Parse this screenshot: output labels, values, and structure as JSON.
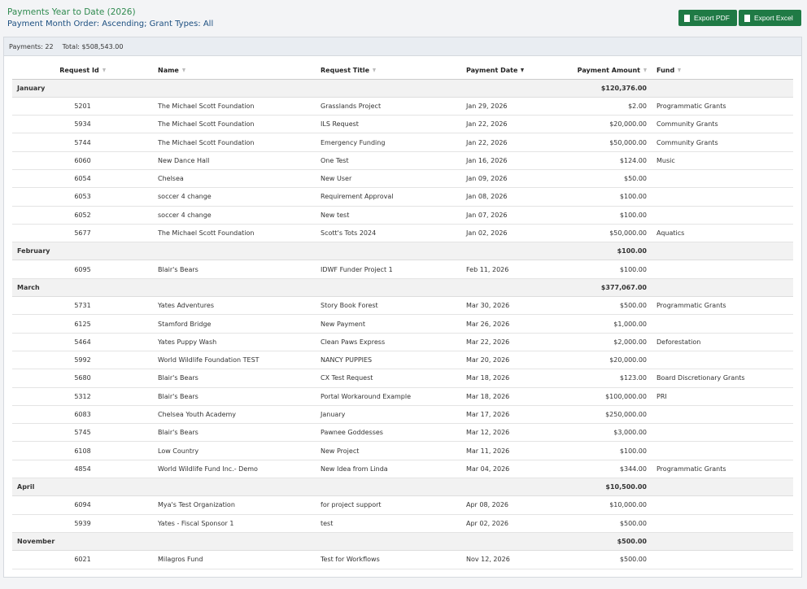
{
  "header": {
    "title": "Payments Year to Date (2026)",
    "subtitle": "Payment Month Order: Ascending; Grant Types: All",
    "buttons": [
      "Export PDF",
      "Export Excel"
    ]
  },
  "summary": {
    "payments": "Payments: 22",
    "total": "Total: $508,543.00"
  },
  "table": {
    "columns": [
      "Request Id",
      "Name",
      "Request Title",
      "Payment Date",
      "Payment Amount",
      "Fund"
    ],
    "groups": [
      {
        "month": "January",
        "total": "$120,376.00",
        "rows": [
          [
            "5201",
            "The Michael Scott Foundation",
            "Grasslands Project",
            "Jan 29, 2026",
            "$2.00",
            "Programmatic Grants"
          ],
          [
            "5934",
            "The Michael Scott Foundation",
            "ILS Request",
            "Jan 22, 2026",
            "$20,000.00",
            "Community Grants"
          ],
          [
            "5744",
            "The Michael Scott Foundation",
            "Emergency Funding",
            "Jan 22, 2026",
            "$50,000.00",
            "Community Grants"
          ],
          [
            "6060",
            "New Dance Hall",
            "One Test",
            "Jan 16, 2026",
            "$124.00",
            "Music"
          ],
          [
            "6054",
            "Chelsea",
            "New User",
            "Jan 09, 2026",
            "$50.00",
            ""
          ],
          [
            "6053",
            "soccer 4 change",
            "Requirement Approval",
            "Jan 08, 2026",
            "$100.00",
            ""
          ],
          [
            "6052",
            "soccer 4 change",
            "New test",
            "Jan 07, 2026",
            "$100.00",
            ""
          ],
          [
            "5677",
            "The Michael Scott Foundation",
            "Scott's Tots 2024",
            "Jan 02, 2026",
            "$50,000.00",
            "Aquatics"
          ]
        ]
      },
      {
        "month": "February",
        "total": "$100.00",
        "rows": [
          [
            "6095",
            "Blair's Bears",
            "IDWF Funder Project 1",
            "Feb 11, 2026",
            "$100.00",
            ""
          ]
        ]
      },
      {
        "month": "March",
        "total": "$377,067.00",
        "rows": [
          [
            "5731",
            "Yates Adventures",
            "Story Book Forest",
            "Mar 30, 2026",
            "$500.00",
            "Programmatic Grants"
          ],
          [
            "6125",
            "Stamford Bridge",
            "New Payment",
            "Mar 26, 2026",
            "$1,000.00",
            ""
          ],
          [
            "5464",
            "Yates Puppy Wash",
            "Clean Paws Express",
            "Mar 22, 2026",
            "$2,000.00",
            "Deforestation"
          ],
          [
            "5992",
            "World Wildlife Foundation TEST",
            "NANCY PUPPIES",
            "Mar 20, 2026",
            "$20,000.00",
            ""
          ],
          [
            "5680",
            "Blair's Bears",
            "CX Test Request",
            "Mar 18, 2026",
            "$123.00",
            "Board Discretionary Grants"
          ],
          [
            "5312",
            "Blair's Bears",
            "Portal Workaround Example",
            "Mar 18, 2026",
            "$100,000.00",
            "PRI"
          ],
          [
            "6083",
            "Chelsea Youth Academy",
            "January",
            "Mar 17, 2026",
            "$250,000.00",
            ""
          ],
          [
            "5745",
            "Blair's Bears",
            "Pawnee Goddesses",
            "Mar 12, 2026",
            "$3,000.00",
            ""
          ],
          [
            "6108",
            "Low Country",
            "New Project",
            "Mar 11, 2026",
            "$100.00",
            ""
          ],
          [
            "4854",
            "World Wildlife Fund Inc.- Demo",
            "New Idea from Linda",
            "Mar 04, 2026",
            "$344.00",
            "Programmatic Grants"
          ]
        ]
      },
      {
        "month": "April",
        "total": "$10,500.00",
        "rows": [
          [
            "6094",
            "Mya's Test Organization",
            "for project support",
            "Apr 08, 2026",
            "$10,000.00",
            ""
          ],
          [
            "5939",
            "Yates - Fiscal Sponsor 1",
            "test",
            "Apr 02, 2026",
            "$500.00",
            ""
          ]
        ]
      },
      {
        "month": "November",
        "total": "$500.00",
        "rows": [
          [
            "6021",
            "Milagros Fund",
            "Test for Workflows",
            "Nov 12, 2026",
            "$500.00",
            ""
          ]
        ]
      }
    ]
  }
}
